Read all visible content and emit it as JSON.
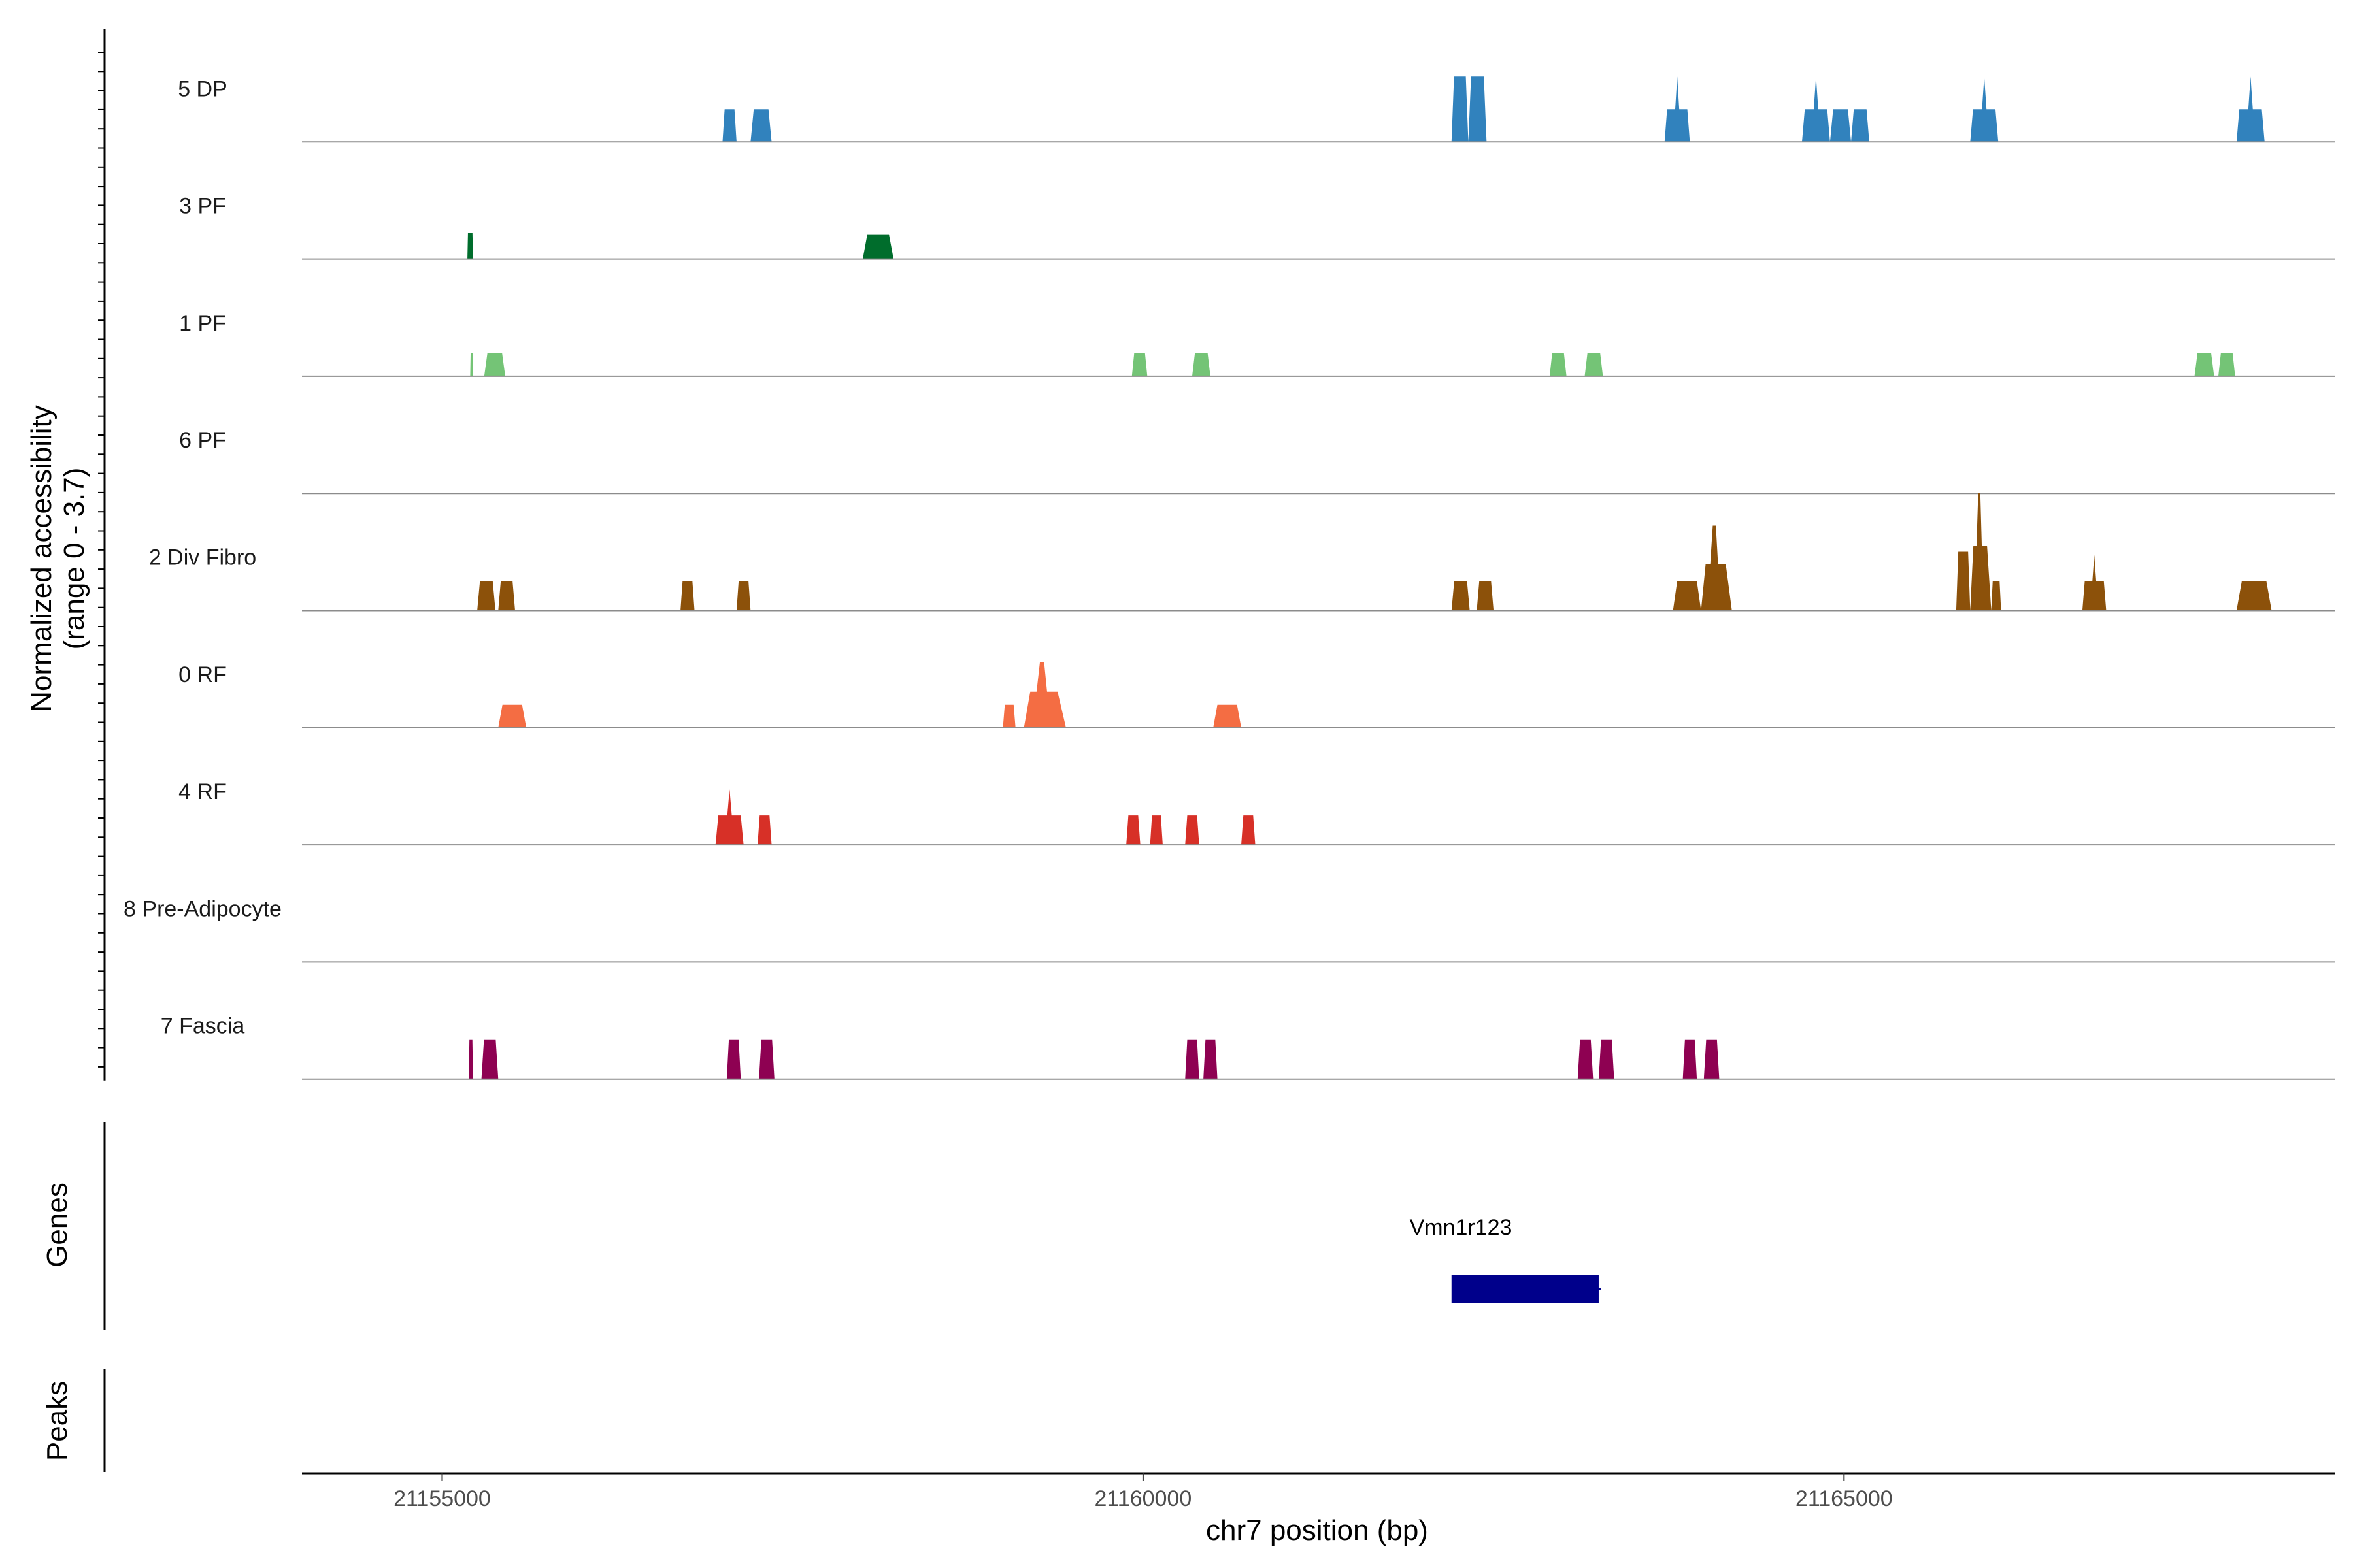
{
  "chart_data": {
    "type": "area",
    "x_range": [
      21154000,
      21168500
    ],
    "tracks": [
      {
        "name": "5 DP",
        "color": "#3182BD",
        "peaks": [
          {
            "x0": 21157000,
            "x1": 21157100,
            "h": 0.5
          },
          {
            "x0": 21157200,
            "x1": 21157350,
            "h": 0.5
          },
          {
            "x0": 21162200,
            "x1": 21162320,
            "h": 1.0
          },
          {
            "x0": 21162320,
            "x1": 21162450,
            "h": 1.0
          },
          {
            "x0": 21163720,
            "x1": 21163900,
            "h": 0.5,
            "spike": 1.0
          },
          {
            "x0": 21164700,
            "x1": 21164900,
            "h": 0.5,
            "spike": 1.0
          },
          {
            "x0": 21164900,
            "x1": 21165050,
            "h": 0.5
          },
          {
            "x0": 21165050,
            "x1": 21165180,
            "h": 0.5
          },
          {
            "x0": 21165900,
            "x1": 21166100,
            "h": 0.5,
            "spike": 1.0
          },
          {
            "x0": 21167800,
            "x1": 21168000,
            "h": 0.5,
            "spike": 1.0
          }
        ]
      },
      {
        "name": "3 PF",
        "color": "#006D2C",
        "peaks": [
          {
            "x0": 21155180,
            "x1": 21155220,
            "h": 0.4,
            "spike": 0.4
          },
          {
            "x0": 21158000,
            "x1": 21158220,
            "h": 0.38
          }
        ]
      },
      {
        "name": "1 PF",
        "color": "#74C476",
        "peaks": [
          {
            "x0": 21155200,
            "x1": 21155220,
            "h": 0.35
          },
          {
            "x0": 21155300,
            "x1": 21155450,
            "h": 0.35
          },
          {
            "x0": 21159920,
            "x1": 21160030,
            "h": 0.35
          },
          {
            "x0": 21160350,
            "x1": 21160480,
            "h": 0.35
          },
          {
            "x0": 21162900,
            "x1": 21163020,
            "h": 0.35
          },
          {
            "x0": 21163150,
            "x1": 21163280,
            "h": 0.35
          },
          {
            "x0": 21167500,
            "x1": 21167640,
            "h": 0.35
          },
          {
            "x0": 21167670,
            "x1": 21167790,
            "h": 0.35
          }
        ]
      },
      {
        "name": "6 PF",
        "color": "#A1D99B",
        "peaks": []
      },
      {
        "name": "2 Div Fibro",
        "color": "#8C510A",
        "peaks": [
          {
            "x0": 21155250,
            "x1": 21155380,
            "h": 0.45
          },
          {
            "x0": 21155400,
            "x1": 21155520,
            "h": 0.45
          },
          {
            "x0": 21156700,
            "x1": 21156800,
            "h": 0.45
          },
          {
            "x0": 21157100,
            "x1": 21157200,
            "h": 0.45
          },
          {
            "x0": 21162200,
            "x1": 21162330,
            "h": 0.45
          },
          {
            "x0": 21162380,
            "x1": 21162500,
            "h": 0.45
          },
          {
            "x0": 21163780,
            "x1": 21163980,
            "h": 0.45
          },
          {
            "x0": 21163980,
            "x1": 21164200,
            "h": 1.3,
            "shape": "stepped"
          },
          {
            "x0": 21165800,
            "x1": 21165900,
            "h": 0.9
          },
          {
            "x0": 21165900,
            "x1": 21166050,
            "h": 1.8,
            "shape": "stepped"
          },
          {
            "x0": 21166050,
            "x1": 21166120,
            "h": 0.45
          },
          {
            "x0": 21166700,
            "x1": 21166870,
            "h": 0.45,
            "spike": 0.85
          },
          {
            "x0": 21167800,
            "x1": 21168050,
            "h": 0.45
          }
        ]
      },
      {
        "name": "0 RF",
        "color": "#F46D43",
        "peaks": [
          {
            "x0": 21155400,
            "x1": 21155600,
            "h": 0.35
          },
          {
            "x0": 21159000,
            "x1": 21159090,
            "h": 0.35
          },
          {
            "x0": 21159150,
            "x1": 21159450,
            "h": 1.0,
            "shape": "stepped"
          },
          {
            "x0": 21160500,
            "x1": 21160700,
            "h": 0.35
          }
        ]
      },
      {
        "name": "4 RF",
        "color": "#D73027",
        "peaks": [
          {
            "x0": 21156950,
            "x1": 21157150,
            "h": 0.45,
            "spike": 0.85
          },
          {
            "x0": 21157250,
            "x1": 21157350,
            "h": 0.45
          },
          {
            "x0": 21159880,
            "x1": 21159980,
            "h": 0.45
          },
          {
            "x0": 21160050,
            "x1": 21160140,
            "h": 0.45
          },
          {
            "x0": 21160300,
            "x1": 21160400,
            "h": 0.45
          },
          {
            "x0": 21160700,
            "x1": 21160800,
            "h": 0.45
          }
        ]
      },
      {
        "name": "8 Pre-Adipocyte",
        "color": "#FDAE61",
        "peaks": []
      },
      {
        "name": "7 Fascia",
        "color": "#8E0152",
        "peaks": [
          {
            "x0": 21155190,
            "x1": 21155220,
            "h": 0.6
          },
          {
            "x0": 21155280,
            "x1": 21155400,
            "h": 0.6
          },
          {
            "x0": 21157030,
            "x1": 21157130,
            "h": 0.6
          },
          {
            "x0": 21157260,
            "x1": 21157370,
            "h": 0.6
          },
          {
            "x0": 21160300,
            "x1": 21160400,
            "h": 0.6
          },
          {
            "x0": 21160430,
            "x1": 21160530,
            "h": 0.6
          },
          {
            "x0": 21163100,
            "x1": 21163210,
            "h": 0.6
          },
          {
            "x0": 21163250,
            "x1": 21163360,
            "h": 0.6
          },
          {
            "x0": 21163850,
            "x1": 21163950,
            "h": 0.6
          },
          {
            "x0": 21164000,
            "x1": 21164110,
            "h": 0.6
          }
        ]
      }
    ],
    "ylabel": "Normalized accessibility",
    "ylabel_range": "(range 0 - 3.7)",
    "genes_label": "Genes",
    "peaks_label": "Peaks",
    "gene": {
      "name": "Vmn1r123",
      "start": 21162200,
      "end": 21163250,
      "color": "#00008B"
    },
    "xlabel": "chr7 position (bp)",
    "xticks": [
      21155000,
      21160000,
      21165000
    ],
    "xtick_labels": [
      "21155000",
      "21160000",
      "21165000"
    ]
  }
}
